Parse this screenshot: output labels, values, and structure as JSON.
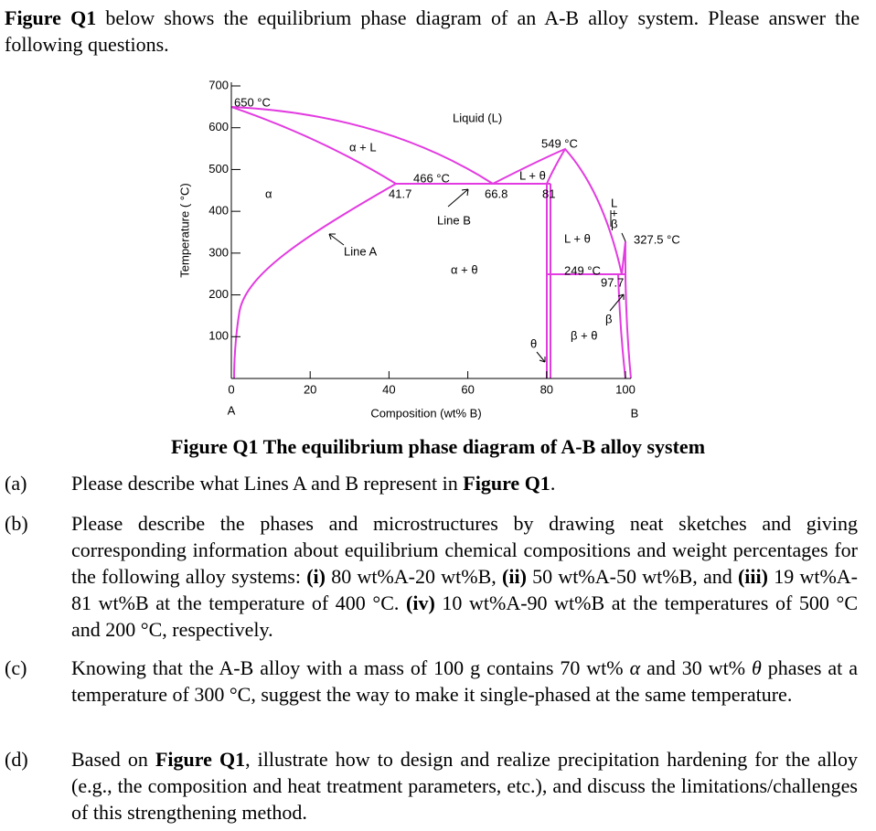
{
  "intro": [
    {
      "text": "Figure Q1",
      "bold": true
    },
    {
      "text": " below shows the equilibrium phase diagram of an A-B alloy system. Please answer the following questions."
    }
  ],
  "figure": {
    "y_label": "Temperature ( °C)",
    "x_label": "Composition (wt% B)",
    "x_end_labels": [
      "A",
      "B"
    ],
    "xlim": [
      0,
      100
    ],
    "ylim": [
      0,
      700
    ],
    "xticks": [
      0,
      20,
      40,
      60,
      80,
      100
    ],
    "yticks": [
      100,
      200,
      300,
      400,
      500,
      600,
      700
    ],
    "color": "#e23be0",
    "annotations": [
      "650 °C",
      "Liquid (L)",
      "549 °C",
      "α + L",
      "466 °C",
      "L + θ",
      "α",
      "41.7",
      "66.8",
      "81",
      "Line B",
      "L",
      "+",
      "β",
      "L + θ",
      "327.5 °C",
      "Line A",
      "α + θ",
      "249 °C",
      "97.7",
      "β",
      "β + θ",
      "θ"
    ],
    "caption": "Figure Q1 The equilibrium phase diagram of A-B alloy system"
  },
  "questions": [
    {
      "label": "(a)",
      "segments": [
        {
          "text": "Please describe what Lines A and B represent in "
        },
        {
          "text": "Figure Q1",
          "bold": true
        },
        {
          "text": "."
        }
      ]
    },
    {
      "label": "(b)",
      "segments": [
        {
          "text": "Please describe the phases and microstructures by drawing neat sketches and giving corresponding information about equilibrium chemical compositions and weight percentages for the following alloy systems: "
        },
        {
          "text": "(i)",
          "bold": true
        },
        {
          "text": " 80 wt%A-20 wt%B, "
        },
        {
          "text": "(ii)",
          "bold": true
        },
        {
          "text": " 50 wt%A-50 wt%B, and "
        },
        {
          "text": "(iii)",
          "bold": true
        },
        {
          "text": " 19 wt%A-81 wt%B at the temperature of 400 °C. "
        },
        {
          "text": "(iv)",
          "bold": true
        },
        {
          "text": " 10 wt%A-90 wt%B at the temperatures of 500 °C and 200 °C, respectively."
        }
      ]
    },
    {
      "label": "(c)",
      "segments": [
        {
          "text": "Knowing that the A-B alloy with a mass of 100 g contains 70 wt% "
        },
        {
          "text": "α",
          "italic": true
        },
        {
          "text": " and 30 wt% "
        },
        {
          "text": "θ",
          "italic": true
        },
        {
          "text": " phases at a temperature of 300 °C, suggest the way to make it single-phased at the same temperature."
        }
      ]
    },
    {
      "label": "(d)",
      "segments": [
        {
          "text": "Based on "
        },
        {
          "text": "Figure Q1",
          "bold": true
        },
        {
          "text": ", illustrate how to design and realize precipitation hardening for the alloy (e.g., the composition and heat treatment parameters, etc.), and discuss the limitations/challenges of this strengthening method."
        }
      ]
    }
  ]
}
